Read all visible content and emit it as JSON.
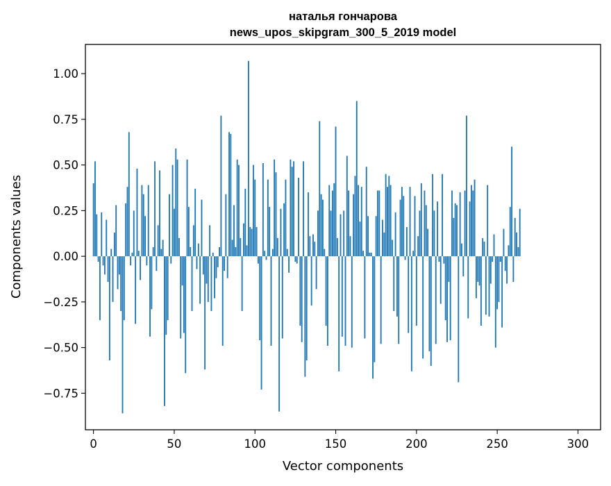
{
  "chart_data": {
    "type": "bar",
    "title": "наталья гончарова",
    "subtitle": "news_upos_skipgram_300_5_2019 model",
    "xlabel": "Vector components",
    "ylabel": "Components values",
    "xlim": [
      -5,
      314
    ],
    "ylim": [
      -0.95,
      1.16
    ],
    "xticks": [
      0,
      50,
      100,
      150,
      200,
      250,
      300
    ],
    "xtick_labels": [
      "0",
      "50",
      "100",
      "150",
      "200",
      "250",
      "300"
    ],
    "yticks": [
      -0.75,
      -0.5,
      -0.25,
      0.0,
      0.25,
      0.5,
      0.75,
      1.0
    ],
    "ytick_labels": [
      "−0.75",
      "−0.50",
      "−0.25",
      "0.00",
      "0.25",
      "0.50",
      "0.75",
      "1.00"
    ],
    "bar_color": "#1f77b4",
    "grid": false,
    "series": [
      {
        "name": "components",
        "values": [
          0.4,
          0.52,
          0.23,
          -0.03,
          -0.35,
          0.24,
          -0.05,
          -0.1,
          0.2,
          -0.14,
          -0.57,
          0.04,
          -0.25,
          0.13,
          0.28,
          -0.18,
          -0.1,
          -0.3,
          -0.86,
          -0.35,
          0.29,
          0.38,
          0.68,
          -0.05,
          0.02,
          0.25,
          -0.37,
          0.48,
          0.03,
          -0.13,
          0.39,
          0.34,
          0.22,
          -0.05,
          0.39,
          -0.44,
          -0.29,
          0.05,
          0.52,
          -0.08,
          0.17,
          0.47,
          0.04,
          0.09,
          -0.82,
          -0.43,
          -0.35,
          0.34,
          -0.04,
          0.5,
          0.26,
          0.59,
          0.53,
          0.1,
          -0.45,
          -0.16,
          -0.42,
          -0.64,
          0.53,
          0.27,
          0.05,
          -0.3,
          0.17,
          0.37,
          -0.07,
          0.07,
          -0.26,
          0.31,
          -0.1,
          -0.62,
          -0.15,
          -0.25,
          0.17,
          -0.3,
          0.02,
          -0.23,
          -0.12,
          -0.06,
          0.05,
          0.77,
          -0.49,
          -0.08,
          0.34,
          -0.12,
          0.68,
          0.67,
          0.09,
          0.28,
          0.05,
          0.53,
          0.5,
          0.1,
          -0.3,
          0.18,
          0.37,
          0.06,
          1.07,
          0.16,
          0.15,
          0.5,
          0.42,
          0.16,
          -0.04,
          -0.46,
          -0.73,
          0.51,
          0.03,
          -0.02,
          0.42,
          0.27,
          -0.49,
          0.04,
          0.53,
          0.46,
          0.1,
          -0.85,
          0.26,
          -0.45,
          0.29,
          0.42,
          0.04,
          -0.09,
          0.53,
          0.49,
          0.52,
          -0.03,
          -0.04,
          0.43,
          -0.38,
          -0.47,
          0.52,
          -0.66,
          -0.57,
          0.35,
          0.11,
          -0.27,
          0.12,
          0.08,
          -0.18,
          0.25,
          0.74,
          0.34,
          0.31,
          0.04,
          -0.38,
          -0.49,
          0.39,
          0.25,
          0.36,
          0.4,
          0.71,
          0.1,
          -0.63,
          0.23,
          -0.44,
          0.25,
          -0.49,
          0.55,
          0.36,
          0.11,
          -0.5,
          0.34,
          0.44,
          0.85,
          0.39,
          0.19,
          0.38,
          0.03,
          -0.45,
          0.49,
          0.22,
          0.02,
          0.02,
          -0.67,
          -0.58,
          0.22,
          0.36,
          0.36,
          -0.48,
          0.2,
          0.13,
          0.45,
          0.38,
          0.44,
          0.39,
          0.09,
          -0.3,
          0.24,
          -0.33,
          -0.48,
          0.31,
          0.38,
          0.33,
          -0.02,
          0.16,
          -0.42,
          0.38,
          -0.63,
          0.03,
          0.33,
          -0.38,
          0.11,
          0.25,
          0.4,
          -0.56,
          0.36,
          0.28,
          0.15,
          -0.52,
          -0.6,
          0.45,
          0.25,
          -0.48,
          0.3,
          -0.03,
          -0.26,
          0.45,
          -0.04,
          -0.35,
          -0.47,
          -0.14,
          -0.46,
          0.36,
          0.21,
          0.29,
          0.28,
          -0.69,
          0.35,
          0.07,
          -0.11,
          0.36,
          0.77,
          -0.34,
          0.3,
          0.39,
          0.36,
          0.42,
          -0.23,
          -0.14,
          -0.16,
          -0.38,
          0.1,
          0.08,
          -0.32,
          0.39,
          -0.33,
          -0.15,
          -0.03,
          0.12,
          -0.5,
          -0.29,
          -0.25,
          -0.03,
          -0.39,
          0.15,
          -0.08,
          -0.15,
          0.06,
          0.27,
          0.6,
          -0.14,
          0.21,
          0.13,
          0.05,
          0.26
        ]
      }
    ]
  }
}
